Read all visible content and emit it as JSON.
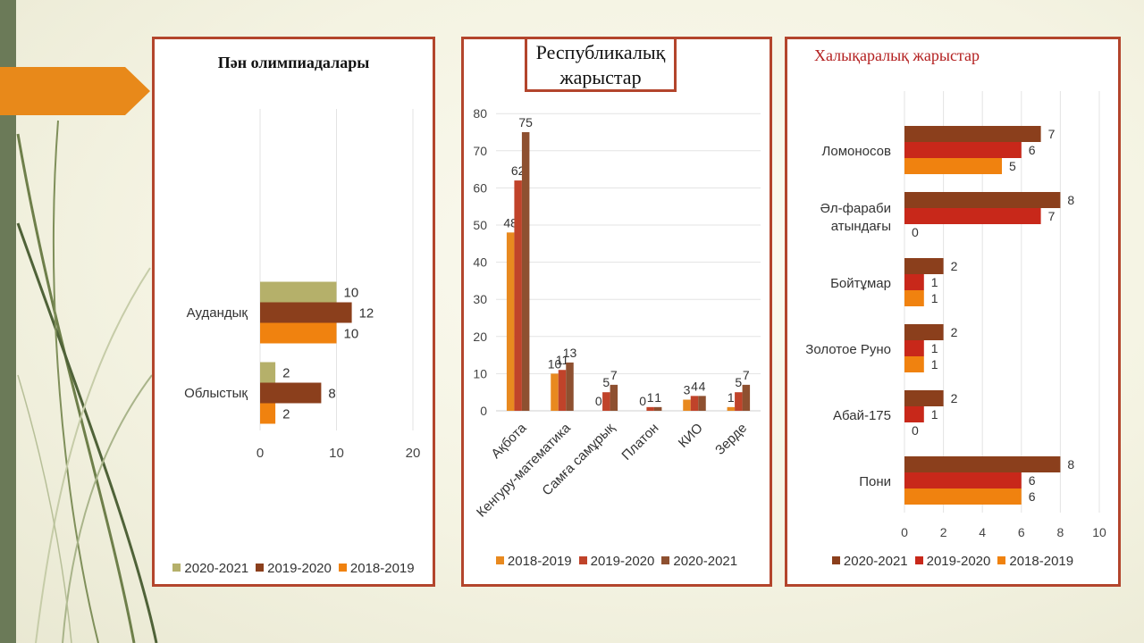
{
  "chart_data": [
    {
      "type": "bar",
      "orientation": "horizontal",
      "title": "Пән олимпиадалары",
      "categories": [
        "Облыстық",
        "Аудандық"
      ],
      "series": [
        {
          "name": "2018-2019",
          "color": "#f0820f",
          "values": [
            2,
            10
          ]
        },
        {
          "name": "2019-2020",
          "color": "#8b3f1c",
          "values": [
            8,
            12
          ]
        },
        {
          "name": "2020-2021",
          "color": "#b5b06a",
          "values": [
            2,
            10
          ]
        }
      ],
      "legend_order": [
        "2020-2021",
        "2019-2020",
        "2018-2019"
      ],
      "xlim": [
        0,
        20
      ],
      "xticks": [
        "0",
        "10",
        "20"
      ],
      "grid": true,
      "legend_position": "bottom"
    },
    {
      "type": "bar",
      "orientation": "vertical",
      "title": "Республикалық жарыстар",
      "title_lines": [
        "Республикалық",
        "жарыстар"
      ],
      "categories": [
        "Ақбота",
        "Кенгуру-математика",
        "Самға самұрық",
        "Платон",
        "КИО",
        "Зерде"
      ],
      "series": [
        {
          "name": "2018-2019",
          "color": "#e8891f",
          "values": [
            48,
            10,
            0,
            0,
            3,
            1
          ]
        },
        {
          "name": "2019-2020",
          "color": "#c0432a",
          "values": [
            62,
            11,
            5,
            1,
            4,
            5
          ]
        },
        {
          "name": "2020-2021",
          "color": "#8e5030",
          "values": [
            75,
            13,
            7,
            1,
            4,
            7
          ]
        }
      ],
      "legend_order": [
        "2018-2019",
        "2019-2020",
        "2020-2021"
      ],
      "ylim": [
        0,
        80
      ],
      "yticks": [
        "0",
        "10",
        "20",
        "30",
        "40",
        "50",
        "60",
        "70",
        "80"
      ],
      "grid": true,
      "legend_position": "bottom"
    },
    {
      "type": "bar",
      "orientation": "horizontal",
      "title": "Халықаралық  жарыстар",
      "categories": [
        "Пони",
        "Абай-175",
        "Золотое Руно",
        "Бойтұмар",
        "Әл-фараби атындағы",
        "Ломоносов"
      ],
      "category_lines": [
        [
          "Пони"
        ],
        [
          "Абай-175"
        ],
        [
          "Золотое Руно"
        ],
        [
          "Бойтұмар"
        ],
        [
          "Әл-фараби",
          "атындағы"
        ],
        [
          "Ломоносов"
        ]
      ],
      "series": [
        {
          "name": "2018-2019",
          "color": "#f0820f",
          "values": [
            6,
            0,
            1,
            1,
            0,
            5
          ]
        },
        {
          "name": "2019-2020",
          "color": "#c8281a",
          "values": [
            6,
            1,
            1,
            1,
            7,
            6
          ]
        },
        {
          "name": "2020-2021",
          "color": "#8b3f1c",
          "values": [
            8,
            2,
            2,
            2,
            8,
            7
          ]
        }
      ],
      "legend_order": [
        "2020-2021",
        "2019-2020",
        "2018-2019"
      ],
      "xlim": [
        0,
        10
      ],
      "xticks": [
        "0",
        "2",
        "4",
        "6",
        "8",
        "10"
      ],
      "grid": true,
      "legend_position": "bottom"
    }
  ]
}
